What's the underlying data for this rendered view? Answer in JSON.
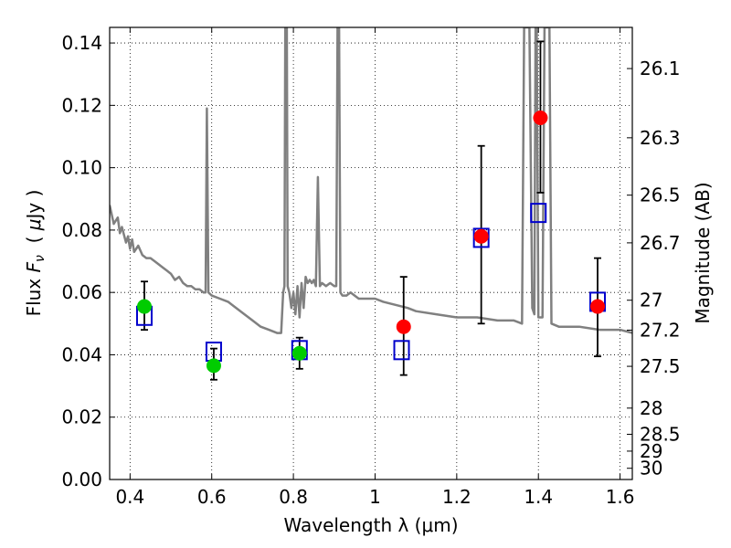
{
  "chart_data": {
    "type": "scatter",
    "xlabel": "Wavelength  λ (μm)",
    "ylabel_parts": [
      "Flux  ",
      "F",
      "ν",
      "  ( ",
      "μ",
      "Jy )"
    ],
    "y2label": "Magnitude (AB)",
    "xlim": [
      0.35,
      1.63
    ],
    "ylim": [
      0.0,
      0.145
    ],
    "grid": true,
    "x_ticks": [
      0.4,
      0.6,
      0.8,
      1.0,
      1.2,
      1.4,
      1.6
    ],
    "x_tick_labels": [
      "0.4",
      "0.6",
      "0.8",
      "1",
      "1.2",
      "1.4",
      "1.6"
    ],
    "y_ticks": [
      0.0,
      0.02,
      0.04,
      0.06,
      0.08,
      0.1,
      0.12,
      0.14
    ],
    "y_tick_labels": [
      "0.00",
      "0.02",
      "0.04",
      "0.06",
      "0.08",
      "0.10",
      "0.12",
      "0.14"
    ],
    "mag_ticks": [
      {
        "label": "26.1",
        "flux": 0.1318
      },
      {
        "label": "26.3",
        "flux": 0.1096
      },
      {
        "label": "26.5",
        "flux": 0.0912
      },
      {
        "label": "26.7",
        "flux": 0.0759
      },
      {
        "label": "27",
        "flux": 0.0575
      },
      {
        "label": "27.2",
        "flux": 0.0479
      },
      {
        "label": "27.5",
        "flux": 0.0363
      },
      {
        "label": "28",
        "flux": 0.0229
      },
      {
        "label": "28.5",
        "flux": 0.0145
      },
      {
        "label": "29",
        "flux": 0.0091
      },
      {
        "label": "30",
        "flux": 0.0036
      }
    ],
    "model_sed": {
      "color": "#808080",
      "points": [
        [
          0.35,
          0.088
        ],
        [
          0.36,
          0.082
        ],
        [
          0.37,
          0.084
        ],
        [
          0.375,
          0.079
        ],
        [
          0.38,
          0.081
        ],
        [
          0.39,
          0.076
        ],
        [
          0.395,
          0.078
        ],
        [
          0.4,
          0.074
        ],
        [
          0.405,
          0.077
        ],
        [
          0.41,
          0.073
        ],
        [
          0.42,
          0.075
        ],
        [
          0.43,
          0.072
        ],
        [
          0.44,
          0.071
        ],
        [
          0.45,
          0.071
        ],
        [
          0.46,
          0.07
        ],
        [
          0.47,
          0.069
        ],
        [
          0.48,
          0.068
        ],
        [
          0.49,
          0.067
        ],
        [
          0.5,
          0.066
        ],
        [
          0.51,
          0.064
        ],
        [
          0.52,
          0.065
        ],
        [
          0.53,
          0.063
        ],
        [
          0.54,
          0.062
        ],
        [
          0.55,
          0.062
        ],
        [
          0.56,
          0.061
        ],
        [
          0.57,
          0.061
        ],
        [
          0.58,
          0.06
        ],
        [
          0.585,
          0.06
        ],
        [
          0.588,
          0.119
        ],
        [
          0.592,
          0.06
        ],
        [
          0.6,
          0.059
        ],
        [
          0.62,
          0.058
        ],
        [
          0.64,
          0.057
        ],
        [
          0.66,
          0.055
        ],
        [
          0.68,
          0.053
        ],
        [
          0.7,
          0.051
        ],
        [
          0.72,
          0.049
        ],
        [
          0.74,
          0.048
        ],
        [
          0.76,
          0.047
        ],
        [
          0.77,
          0.047
        ],
        [
          0.775,
          0.06
        ],
        [
          0.778,
          0.062
        ],
        [
          0.78,
          0.145
        ],
        [
          0.784,
          0.145
        ],
        [
          0.786,
          0.062
        ],
        [
          0.79,
          0.06
        ],
        [
          0.795,
          0.055
        ],
        [
          0.8,
          0.06
        ],
        [
          0.805,
          0.053
        ],
        [
          0.81,
          0.062
        ],
        [
          0.815,
          0.052
        ],
        [
          0.82,
          0.063
        ],
        [
          0.825,
          0.055
        ],
        [
          0.83,
          0.065
        ],
        [
          0.835,
          0.063
        ],
        [
          0.84,
          0.064
        ],
        [
          0.845,
          0.063
        ],
        [
          0.85,
          0.064
        ],
        [
          0.855,
          0.062
        ],
        [
          0.86,
          0.097
        ],
        [
          0.865,
          0.062
        ],
        [
          0.87,
          0.063
        ],
        [
          0.88,
          0.062
        ],
        [
          0.89,
          0.063
        ],
        [
          0.9,
          0.062
        ],
        [
          0.905,
          0.062
        ],
        [
          0.908,
          0.145
        ],
        [
          0.912,
          0.145
        ],
        [
          0.915,
          0.06
        ],
        [
          0.92,
          0.059
        ],
        [
          0.93,
          0.059
        ],
        [
          0.94,
          0.06
        ],
        [
          0.95,
          0.059
        ],
        [
          0.96,
          0.058
        ],
        [
          0.98,
          0.058
        ],
        [
          1.0,
          0.058
        ],
        [
          1.02,
          0.057
        ],
        [
          1.05,
          0.056
        ],
        [
          1.08,
          0.055
        ],
        [
          1.1,
          0.054
        ],
        [
          1.15,
          0.053
        ],
        [
          1.2,
          0.052
        ],
        [
          1.25,
          0.052
        ],
        [
          1.3,
          0.051
        ],
        [
          1.34,
          0.051
        ],
        [
          1.36,
          0.05
        ],
        [
          1.365,
          0.145
        ],
        [
          1.378,
          0.145
        ],
        [
          1.385,
          0.055
        ],
        [
          1.39,
          0.053
        ],
        [
          1.393,
          0.145
        ],
        [
          1.396,
          0.145
        ],
        [
          1.4,
          0.052
        ],
        [
          1.41,
          0.052
        ],
        [
          1.415,
          0.145
        ],
        [
          1.427,
          0.145
        ],
        [
          1.432,
          0.05
        ],
        [
          1.45,
          0.049
        ],
        [
          1.5,
          0.049
        ],
        [
          1.55,
          0.048
        ],
        [
          1.6,
          0.048
        ],
        [
          1.63,
          0.047
        ]
      ]
    },
    "observed_points": [
      {
        "x": 0.435,
        "y": 0.0555,
        "yerr_low": 0.0075,
        "yerr_high": 0.008,
        "color": "#00cc00"
      },
      {
        "x": 0.605,
        "y": 0.0365,
        "yerr_low": 0.0045,
        "yerr_high": 0.0055,
        "color": "#00cc00"
      },
      {
        "x": 0.815,
        "y": 0.0405,
        "yerr_low": 0.005,
        "yerr_high": 0.005,
        "color": "#00cc00"
      },
      {
        "x": 1.07,
        "y": 0.049,
        "yerr_low": 0.0155,
        "yerr_high": 0.016,
        "color": "#ff0000"
      },
      {
        "x": 1.26,
        "y": 0.078,
        "yerr_low": 0.028,
        "yerr_high": 0.029,
        "color": "#ff0000"
      },
      {
        "x": 1.405,
        "y": 0.116,
        "yerr_low": 0.024,
        "yerr_high": 0.0245,
        "color": "#ff0000"
      },
      {
        "x": 1.545,
        "y": 0.0555,
        "yerr_low": 0.016,
        "yerr_high": 0.0155,
        "color": "#ff0000"
      }
    ],
    "model_photometry": {
      "color": "#0000cc",
      "points": [
        [
          0.435,
          0.0525
        ],
        [
          0.605,
          0.041
        ],
        [
          0.815,
          0.0415
        ],
        [
          1.065,
          0.0415
        ],
        [
          1.26,
          0.0775
        ],
        [
          1.4,
          0.0855
        ],
        [
          1.545,
          0.057
        ]
      ]
    }
  }
}
